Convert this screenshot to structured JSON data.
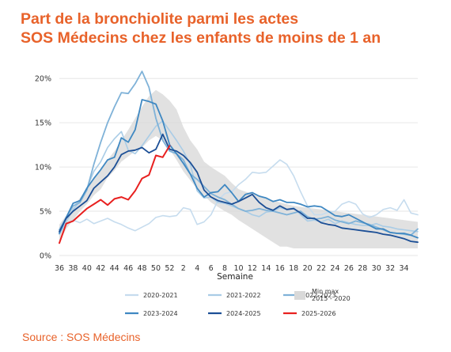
{
  "header": {
    "title_line1": "Part de la bronchiolite parmi les actes",
    "title_line2": "SOS Médecins chez les enfants de moins de 1 an"
  },
  "footer": {
    "source": "Source : SOS Médecins"
  },
  "colors": {
    "title": "#e8622a",
    "band": "#d9d9d9",
    "s2020_2021": "#c6dcee",
    "s2021_2022": "#a9cce6",
    "s2022_2023": "#7fb2d8",
    "s2023_2024": "#3f88c2",
    "s2024_2025": "#1c4f96",
    "s2025_2026": "#e8201f"
  },
  "chart_data": {
    "type": "line",
    "xlabel": "Semaine",
    "ylabel": "",
    "y_tick_labels": [
      "0%",
      "5%",
      "10%",
      "15%",
      "20%"
    ],
    "ylim": [
      0,
      21
    ],
    "x_ticks": [
      36,
      38,
      40,
      42,
      44,
      46,
      48,
      50,
      52,
      2,
      4,
      6,
      8,
      10,
      12,
      14,
      16,
      18,
      20,
      22,
      24,
      26,
      28,
      30,
      32,
      34
    ],
    "grid": "horizontal",
    "legend": "bottom",
    "band": {
      "name": "Min max\n2015 - 2020",
      "lower": [
        1.5,
        3.0,
        4.0,
        5.0,
        5.8,
        6.8,
        7.5,
        8.8,
        9.6,
        10.6,
        11.2,
        11.8,
        12.2,
        13.0,
        13.5,
        13.0,
        12.0,
        10.8,
        9.5,
        8.5,
        7.5,
        6.8,
        6.0,
        5.5,
        5.0,
        4.6,
        4.0,
        3.5,
        3.0,
        2.5,
        2.0,
        1.5,
        1.0,
        1.0,
        0.8,
        0.8,
        0.8,
        0.8,
        0.8,
        0.8,
        0.8,
        0.8,
        0.8,
        0.8,
        0.8,
        0.8,
        0.8,
        0.8,
        0.8,
        0.8,
        0.8,
        0.8,
        0.8
      ],
      "upper": [
        3.5,
        4.5,
        5.5,
        6.5,
        7.5,
        8.8,
        9.8,
        10.8,
        11.8,
        13.0,
        14.2,
        15.5,
        16.8,
        18.0,
        18.7,
        18.2,
        17.5,
        16.5,
        14.5,
        13.0,
        12.0,
        10.6,
        10.0,
        9.5,
        9.0,
        8.2,
        7.5,
        7.2,
        7.0,
        6.8,
        6.5,
        6.2,
        6.0,
        5.8,
        5.6,
        5.5,
        5.4,
        5.3,
        5.2,
        5.1,
        5.0,
        4.9,
        4.8,
        4.7,
        4.6,
        4.5,
        4.4,
        4.3,
        4.2,
        4.1,
        4.0,
        3.9,
        3.8
      ]
    },
    "series": [
      {
        "name": "2020-2021",
        "values": [
          2.6,
          3.5,
          4.0,
          3.7,
          4.1,
          3.6,
          3.9,
          4.2,
          3.8,
          3.5,
          3.1,
          2.8,
          3.2,
          3.6,
          4.3,
          4.5,
          4.4,
          4.5,
          5.4,
          5.2,
          3.5,
          3.8,
          4.6,
          6.2,
          7.0,
          7.2,
          8.0,
          8.6,
          9.4,
          9.3,
          9.4,
          10.1,
          10.8,
          10.3,
          9.0,
          7.2,
          5.6,
          4.6,
          4.6,
          4.9,
          5.0,
          5.8,
          6.1,
          5.8,
          4.7,
          4.3,
          4.6,
          5.2,
          5.4,
          5.1,
          6.3,
          4.8,
          4.6
        ]
      },
      {
        "name": "2021-2022",
        "values": [
          2.4,
          3.8,
          5.2,
          6.1,
          7.6,
          9.5,
          10.6,
          12.2,
          13.2,
          14.0,
          11.9,
          11.5,
          12.4,
          13.5,
          14.6,
          15.2,
          14.1,
          13.0,
          11.8,
          10.3,
          7.3,
          6.5,
          6.6,
          6.0,
          5.9,
          5.6,
          5.3,
          5.0,
          4.6,
          4.4,
          4.9,
          5.0,
          5.4,
          5.2,
          5.4,
          4.6,
          3.9,
          4.0,
          3.8,
          4.1,
          3.6,
          3.9,
          3.7,
          3.5,
          3.4,
          3.4,
          3.6,
          3.3,
          3.2,
          3.0,
          2.9,
          2.8,
          2.7
        ]
      },
      {
        "name": "2022-2023",
        "values": [
          2.9,
          4.3,
          5.6,
          6.0,
          7.4,
          10.3,
          12.8,
          15.0,
          16.8,
          18.4,
          18.3,
          19.4,
          20.8,
          19.0,
          15.5,
          13.0,
          11.8,
          11.5,
          10.8,
          9.2,
          8.6,
          7.8,
          7.0,
          6.6,
          6.3,
          5.8,
          5.3,
          5.0,
          5.1,
          5.3,
          5.1,
          5.0,
          4.8,
          4.6,
          4.8,
          5.0,
          4.4,
          4.1,
          4.2,
          4.4,
          4.0,
          3.8,
          3.6,
          3.9,
          3.7,
          3.5,
          3.2,
          2.9,
          2.6,
          2.5,
          2.4,
          2.3,
          3.0
        ]
      },
      {
        "name": "2023-2024",
        "values": [
          2.5,
          4.3,
          5.9,
          6.2,
          7.6,
          8.7,
          9.7,
          10.8,
          11.1,
          13.3,
          12.8,
          14.2,
          17.6,
          17.4,
          17.1,
          15.2,
          12.5,
          11.5,
          10.4,
          9.2,
          7.6,
          6.6,
          7.1,
          7.2,
          8.0,
          7.1,
          6.1,
          6.9,
          7.1,
          6.7,
          6.5,
          6.1,
          6.3,
          6.0,
          6.0,
          5.8,
          5.5,
          5.6,
          5.5,
          5.0,
          4.5,
          4.4,
          4.6,
          4.2,
          3.8,
          3.4,
          3.0,
          3.0,
          2.6,
          2.5,
          2.5,
          2.3,
          2.0
        ]
      },
      {
        "name": "2024-2025",
        "values": [
          2.7,
          4.2,
          5.0,
          5.6,
          6.2,
          7.6,
          8.3,
          9.0,
          10.0,
          11.4,
          11.8,
          11.9,
          12.2,
          11.6,
          12.0,
          13.7,
          12.0,
          11.8,
          11.3,
          10.5,
          9.4,
          7.4,
          6.6,
          6.2,
          6.0,
          5.8,
          6.1,
          6.5,
          6.9,
          6.0,
          5.4,
          5.1,
          5.6,
          5.2,
          5.3,
          4.8,
          4.2,
          4.2,
          3.7,
          3.5,
          3.4,
          3.1,
          3.0,
          2.9,
          2.8,
          2.7,
          2.6,
          2.4,
          2.3,
          2.1,
          1.9,
          1.6,
          1.5
        ]
      },
      {
        "name": "2025-2026",
        "values": [
          1.4,
          3.6,
          3.9,
          4.6,
          5.3,
          5.8,
          6.3,
          5.7,
          6.4,
          6.6,
          6.3,
          7.3,
          8.7,
          9.1,
          11.3,
          11.1,
          12.4
        ]
      }
    ]
  }
}
